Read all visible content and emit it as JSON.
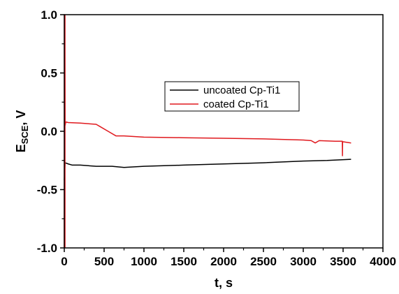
{
  "chart_data": {
    "type": "line",
    "xlabel": "t, s",
    "ylabel_main": "E",
    "ylabel_sub": "SCE",
    "ylabel_unit": ", V",
    "xlim": [
      0,
      4000
    ],
    "ylim": [
      -1.0,
      1.0
    ],
    "x_ticks": [
      0,
      500,
      1000,
      1500,
      2000,
      2500,
      3000,
      3500,
      4000
    ],
    "x_tick_labels": [
      "0",
      "500",
      "1000",
      "1500",
      "2000",
      "2500",
      "3000",
      "3500",
      "4000"
    ],
    "y_ticks": [
      1.0,
      0.5,
      0.0,
      -0.5,
      -1.0
    ],
    "y_tick_labels": [
      "1.0",
      "0.5",
      "0.0",
      "-0.5",
      "-1.0"
    ],
    "grid": false,
    "legend_position": "upper-center",
    "series": [
      {
        "name": "uncoated Cp-Ti1",
        "color": "#000000",
        "x": [
          0,
          10,
          50,
          100,
          200,
          400,
          600,
          750,
          1000,
          1500,
          2000,
          2500,
          3000,
          3300,
          3600
        ],
        "y": [
          -0.42,
          -0.27,
          -0.28,
          -0.29,
          -0.29,
          -0.3,
          -0.3,
          -0.31,
          -0.3,
          -0.29,
          -0.28,
          -0.27,
          -0.255,
          -0.25,
          -0.24
        ]
      },
      {
        "name": "coated Cp-Ti1",
        "color": "#e0191e",
        "x": [
          0,
          5,
          10,
          20,
          50,
          200,
          400,
          450,
          550,
          650,
          750,
          1000,
          1500,
          2000,
          2500,
          3000,
          3100,
          3150,
          3200,
          3400,
          3490,
          3492,
          3494,
          3496,
          3500,
          3600
        ],
        "y": [
          -1.0,
          1.0,
          0.05,
          0.08,
          0.075,
          0.07,
          0.06,
          0.04,
          0.0,
          -0.04,
          -0.04,
          -0.05,
          -0.055,
          -0.06,
          -0.065,
          -0.075,
          -0.08,
          -0.1,
          -0.08,
          -0.085,
          -0.085,
          -0.21,
          -0.09,
          -0.09,
          -0.09,
          -0.1
        ]
      }
    ]
  }
}
